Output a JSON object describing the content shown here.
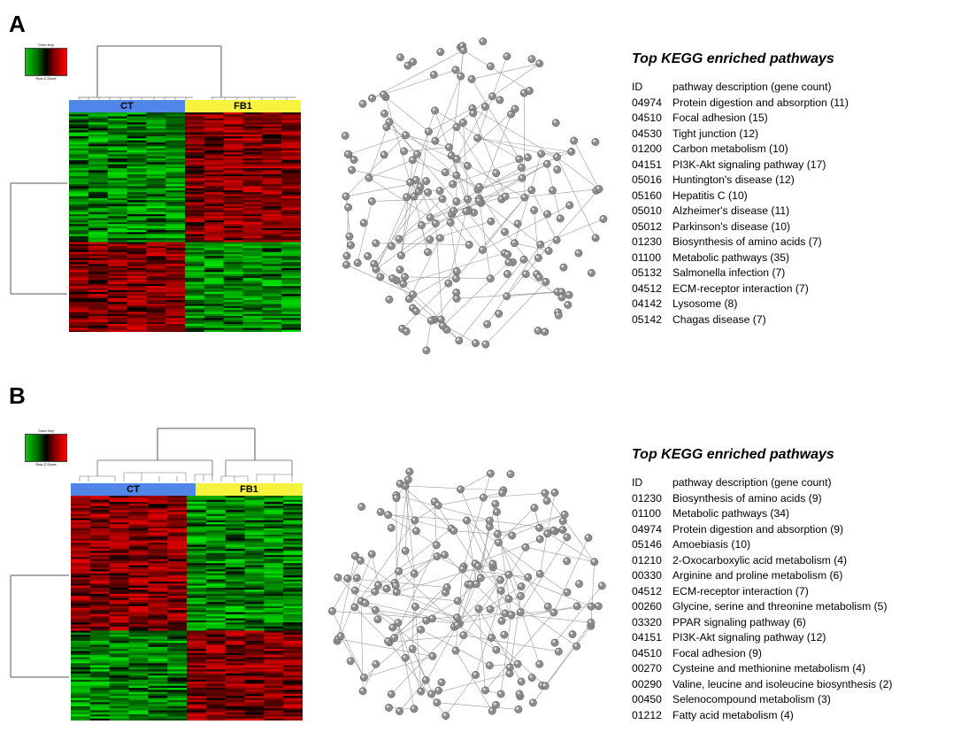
{
  "panels": [
    {
      "letter": "A",
      "color_key": {
        "title": "Color Key",
        "label": "Row Z-Score",
        "ticks": [
          "-2",
          "0",
          "2"
        ]
      },
      "groups": [
        {
          "label": "CT",
          "color": "#4f86e8"
        },
        {
          "label": "FB1",
          "color": "#f7f33c"
        }
      ],
      "heatmap": {
        "columns_per_group": 6,
        "top_block_rows": 0.59,
        "top_left": "green",
        "top_right": "red",
        "bottom_left": "red",
        "bottom_right": "green"
      },
      "kegg": {
        "title": "Top KEGG enriched pathways",
        "header": {
          "id": "ID",
          "description": "pathway description (gene count)"
        },
        "rows": [
          {
            "id": "04974",
            "description": "Protein digestion and absorption (11)"
          },
          {
            "id": "04510",
            "description": "Focal adhesion (15)"
          },
          {
            "id": "04530",
            "description": "Tight junction (12)"
          },
          {
            "id": "01200",
            "description": "Carbon metabolism (10)"
          },
          {
            "id": "04151",
            "description": "PI3K-Akt signaling pathway (17)"
          },
          {
            "id": "05016",
            "description": "Huntington's disease (12)"
          },
          {
            "id": "05160",
            "description": "Hepatitis C (10)"
          },
          {
            "id": "05010",
            "description": "Alzheimer's disease (11)"
          },
          {
            "id": "05012",
            "description": "Parkinson's disease (10)"
          },
          {
            "id": "01230",
            "description": "Biosynthesis of amino acids (7)"
          },
          {
            "id": "01100",
            "description": "Metabolic pathways (35)"
          },
          {
            "id": "05132",
            "description": "Salmonella infection (7)"
          },
          {
            "id": "04512",
            "description": "ECM-receptor interaction (7)"
          },
          {
            "id": "04142",
            "description": "Lysosome (8)"
          },
          {
            "id": "05142",
            "description": "Chagas disease (7)"
          }
        ]
      }
    },
    {
      "letter": "B",
      "color_key": {
        "title": "Color Key",
        "label": "Row Z-Score",
        "ticks": [
          "-2",
          "0",
          "2"
        ]
      },
      "groups": [
        {
          "label": "CT",
          "color": "#4f86e8"
        },
        {
          "label": "FB1",
          "color": "#f7f33c"
        }
      ],
      "heatmap": {
        "columns_per_group": 6,
        "top_block_rows": 0.6,
        "top_left": "red",
        "top_right": "green",
        "bottom_left": "green",
        "bottom_right": "red"
      },
      "kegg": {
        "title": "Top KEGG enriched pathways",
        "header": {
          "id": "ID",
          "description": "pathway description (gene count)"
        },
        "rows": [
          {
            "id": "01230",
            "description": "Biosynthesis of amino acids (9)"
          },
          {
            "id": "01100",
            "description": "Metabolic pathways (34)"
          },
          {
            "id": "04974",
            "description": "Protein digestion and absorption (9)"
          },
          {
            "id": "05146",
            "description": "Amoebiasis (10)"
          },
          {
            "id": "01210",
            "description": "2-Oxocarboxylic acid metabolism (4)"
          },
          {
            "id": "00330",
            "description": "Arginine and proline metabolism (6)"
          },
          {
            "id": "04512",
            "description": "ECM-receptor interaction (7)"
          },
          {
            "id": "00260",
            "description": "Glycine, serine and threonine metabolism (5)"
          },
          {
            "id": "03320",
            "description": "PPAR signaling pathway (6)"
          },
          {
            "id": "04151",
            "description": "PI3K-Akt signaling pathway (12)"
          },
          {
            "id": "04510",
            "description": "Focal adhesion (9)"
          },
          {
            "id": "00270",
            "description": "Cysteine and methionine metabolism (4)"
          },
          {
            "id": "00290",
            "description": "Valine, leucine and isoleucine biosynthesis (2)"
          },
          {
            "id": "00450",
            "description": "Selenocompound metabolism (3)"
          },
          {
            "id": "01212",
            "description": "Fatty acid metabolism (4)"
          }
        ]
      }
    }
  ]
}
